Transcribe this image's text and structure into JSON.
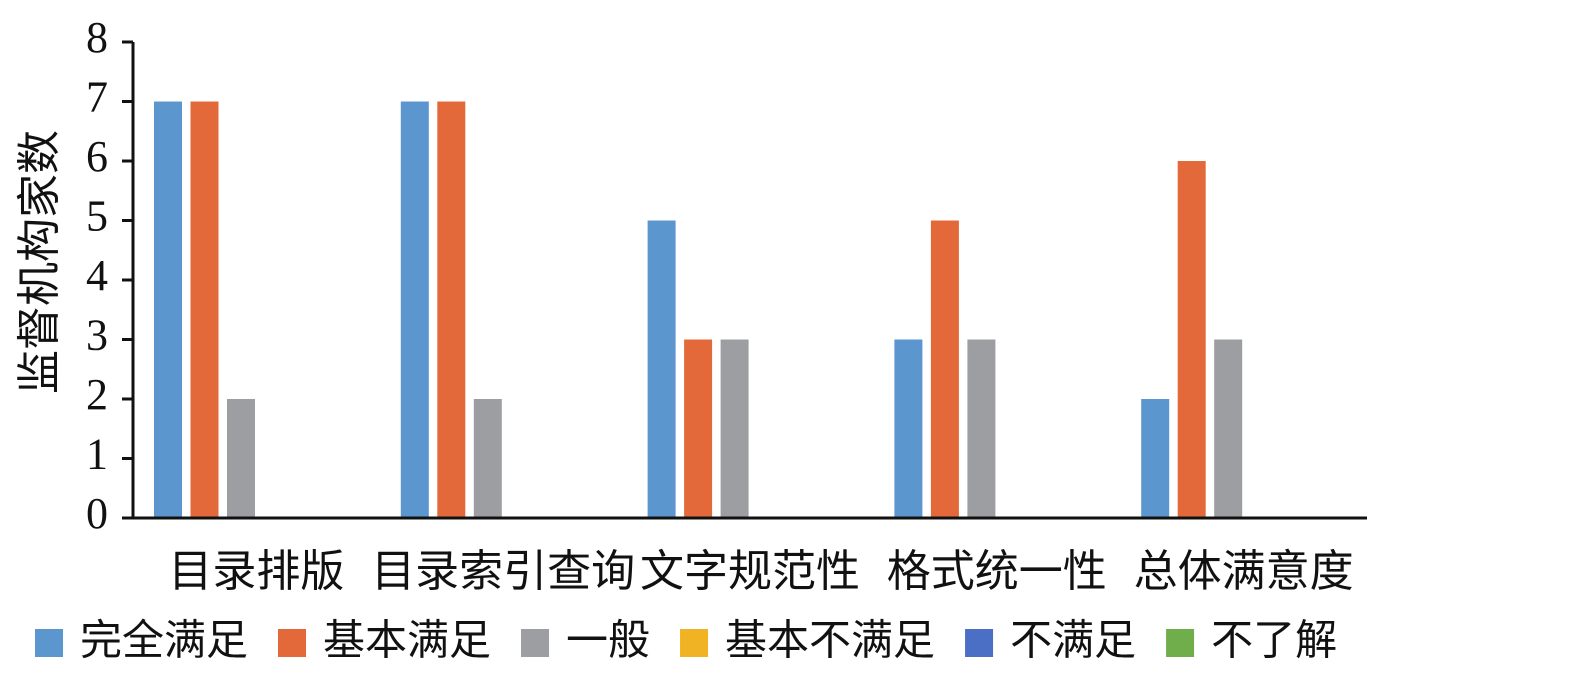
{
  "chart_data": {
    "type": "bar",
    "y_label": "监督机构家数",
    "categories": [
      "目录排版",
      "目录索引查询",
      "文字规范性",
      "格式统一性",
      "总体满意度"
    ],
    "series": [
      {
        "name": "完全满足",
        "color": "#5b96cf",
        "values": [
          7,
          7,
          5,
          3,
          2
        ]
      },
      {
        "name": "基本满足",
        "color": "#e4693a",
        "values": [
          7,
          7,
          3,
          5,
          6
        ]
      },
      {
        "name": "一般",
        "color": "#9d9ea2",
        "values": [
          2,
          2,
          3,
          3,
          3
        ]
      },
      {
        "name": "基本不满足",
        "color": "#f0b323",
        "values": [
          0,
          0,
          0,
          0,
          0
        ]
      },
      {
        "name": "不满足",
        "color": "#4a6fc4",
        "values": [
          0,
          0,
          0,
          0,
          0
        ]
      },
      {
        "name": "不了解",
        "color": "#6fae4a",
        "values": [
          0,
          0,
          0,
          0,
          0
        ]
      }
    ],
    "ylim": [
      0,
      8
    ],
    "yticks": [
      0,
      1,
      2,
      3,
      4,
      5,
      6,
      7,
      8
    ],
    "grid": false
  }
}
